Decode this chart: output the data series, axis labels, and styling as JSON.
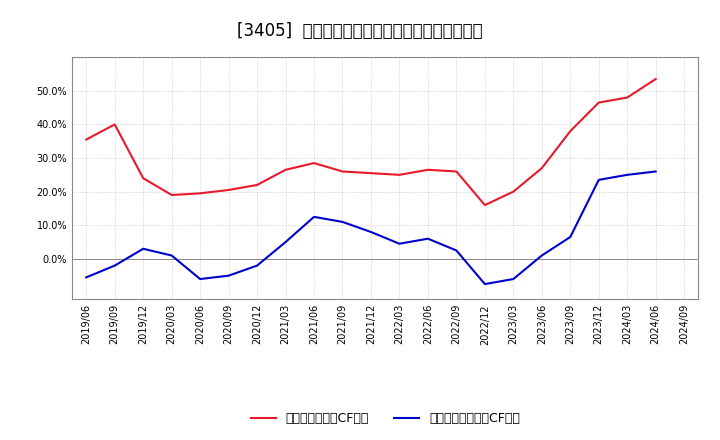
{
  "title": "[3405]  有利子負債キャッシュフロー比率の推移",
  "x_labels": [
    "2019/06",
    "2019/09",
    "2019/12",
    "2020/03",
    "2020/06",
    "2020/09",
    "2020/12",
    "2021/03",
    "2021/06",
    "2021/09",
    "2021/12",
    "2022/03",
    "2022/06",
    "2022/09",
    "2022/12",
    "2023/03",
    "2023/06",
    "2023/09",
    "2023/12",
    "2024/03",
    "2024/06",
    "2024/09"
  ],
  "red_values": [
    0.355,
    0.4,
    0.24,
    0.19,
    0.195,
    0.205,
    0.22,
    0.265,
    0.285,
    0.26,
    0.255,
    0.25,
    0.265,
    0.26,
    0.16,
    0.2,
    0.27,
    0.38,
    0.465,
    0.48,
    0.535,
    null
  ],
  "blue_values": [
    -0.055,
    -0.02,
    0.03,
    0.01,
    -0.06,
    -0.05,
    -0.02,
    0.05,
    0.125,
    0.11,
    0.08,
    0.045,
    0.06,
    0.025,
    -0.075,
    -0.06,
    0.01,
    0.065,
    0.235,
    0.25,
    0.26,
    null
  ],
  "red_color": "#e8192c",
  "blue_color": "#0000cc",
  "ylim": [
    -0.12,
    0.6
  ],
  "yticks": [
    0.0,
    0.1,
    0.2,
    0.3,
    0.4,
    0.5
  ],
  "legend_red": "有利子負債営業CF比率",
  "legend_blue": "有利子負債フリーCF比率",
  "background_color": "#ffffff",
  "plot_bg_color": "#ffffff",
  "grid_color": "#bbbbbb",
  "title_fontsize": 12,
  "tick_fontsize": 7,
  "legend_fontsize": 9
}
